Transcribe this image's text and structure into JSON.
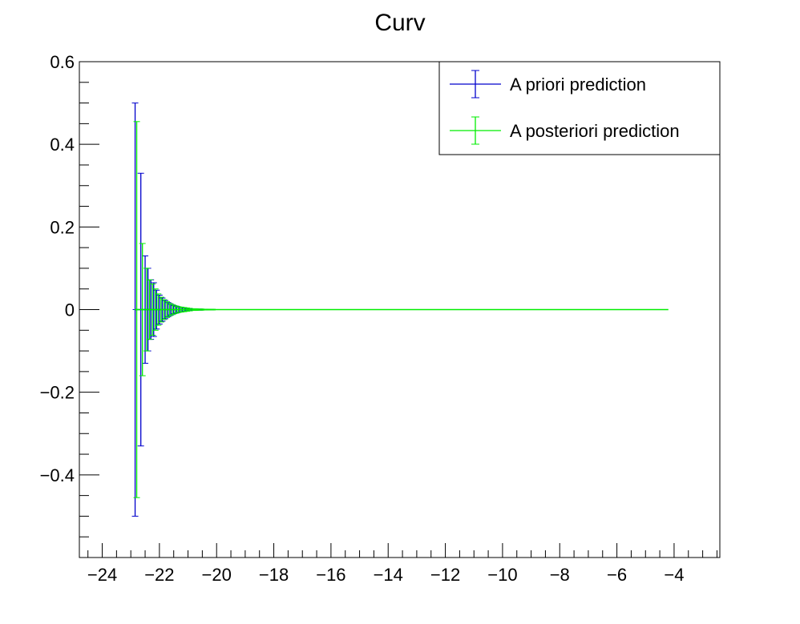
{
  "chart_data": {
    "type": "scatter",
    "title": "Curv",
    "xlabel": "",
    "ylabel": "",
    "xlim": [
      -24.8,
      -2.4
    ],
    "ylim": [
      -0.6,
      0.6
    ],
    "x_ticks": [
      -24,
      -22,
      -20,
      -18,
      -16,
      -14,
      -12,
      -10,
      -8,
      -6,
      -4
    ],
    "y_ticks": [
      -0.4,
      -0.2,
      0,
      0.2,
      0.4,
      0.6
    ],
    "legend_position": "top-right",
    "series": [
      {
        "name": "A priori prediction",
        "color": "#0000cc",
        "x": [
          -22.85,
          -22.65,
          -22.5,
          -22.4,
          -22.3,
          -22.2,
          -22.1,
          -22.0,
          -21.9,
          -21.8,
          -21.7,
          -21.6,
          -21.5,
          -21.4,
          -21.3,
          -21.2,
          -21.1,
          -21.0,
          -20.8,
          -20.6,
          -20.4,
          -20.2
        ],
        "y": [
          0,
          0,
          0,
          0,
          0,
          0,
          0,
          0,
          0,
          0,
          0,
          0,
          0,
          0,
          0,
          0,
          0,
          0,
          0,
          0,
          0,
          0
        ],
        "err": [
          0.5,
          0.33,
          0.13,
          0.1,
          0.072,
          0.065,
          0.047,
          0.035,
          0.028,
          0.022,
          0.017,
          0.013,
          0.01,
          0.008,
          0.006,
          0.005,
          0.004,
          0.003,
          0.002,
          0.0015,
          0.001,
          0.0008
        ]
      },
      {
        "name": "A posteriori prediction",
        "color": "#00ee00",
        "x": [
          -22.85,
          -22.65,
          -22.5,
          -22.4,
          -22.3,
          -22.2,
          -22.1,
          -22.0,
          -21.9,
          -21.8,
          -21.7,
          -21.6,
          -21.5,
          -21.4,
          -21.3,
          -21.2,
          -21.1,
          -21.0,
          -20.8,
          -20.6,
          -20.4,
          -20.2
        ],
        "y": [
          0,
          0,
          0,
          0,
          0,
          0,
          0,
          0,
          0,
          0,
          0,
          0,
          0,
          0,
          0,
          0,
          0,
          0,
          0,
          0,
          0,
          0
        ],
        "err": [
          0.455,
          0.16,
          0.1,
          0.072,
          0.062,
          0.05,
          0.038,
          0.03,
          0.024,
          0.019,
          0.015,
          0.012,
          0.009,
          0.007,
          0.006,
          0.005,
          0.004,
          0.003,
          0.002,
          0.0015,
          0.001,
          0.0008
        ],
        "line_to_x": -4.2
      }
    ]
  }
}
